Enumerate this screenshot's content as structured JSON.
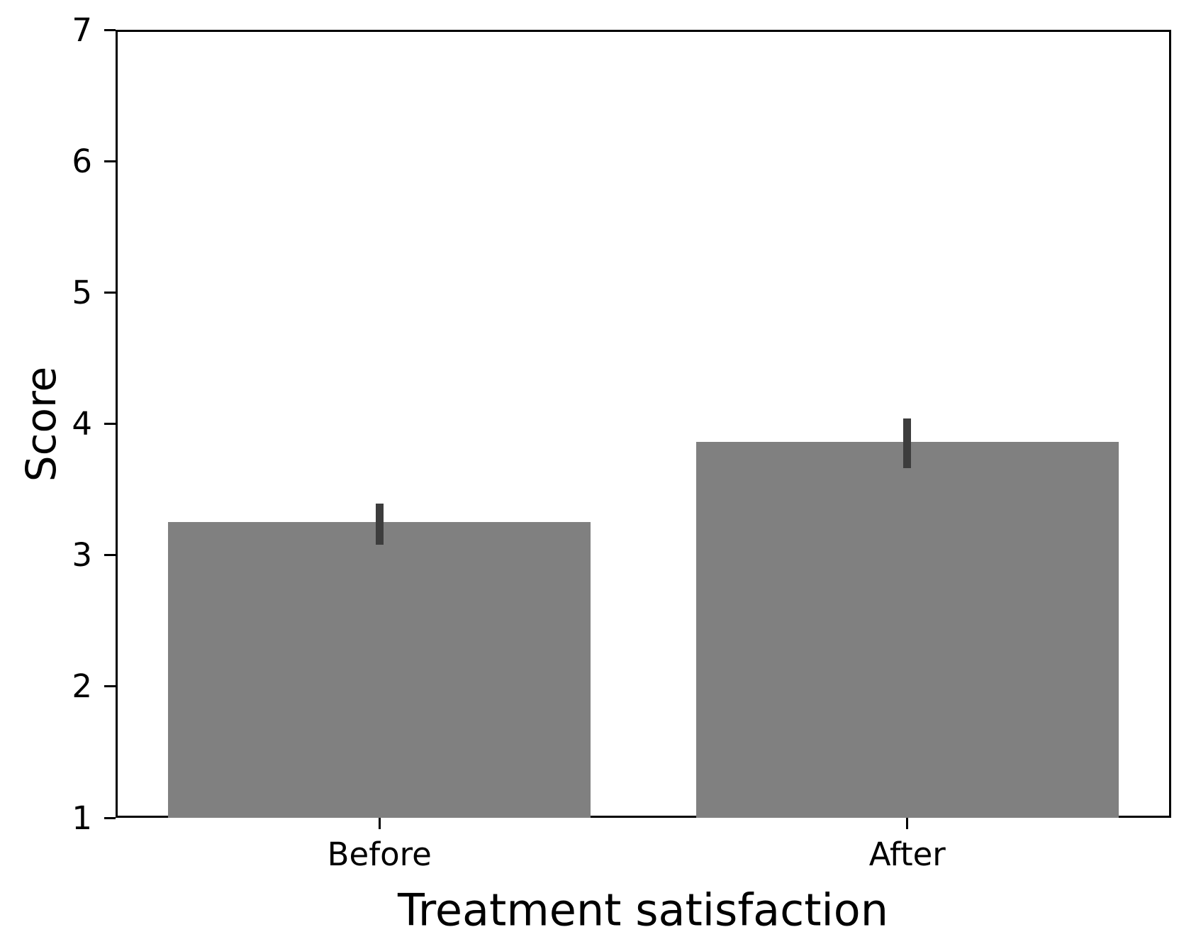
{
  "chart_data": {
    "type": "bar",
    "title": "",
    "xlabel": "Treatment satisfaction",
    "ylabel": "Score",
    "categories": [
      "Before",
      "After"
    ],
    "values": [
      3.25,
      3.86
    ],
    "error_bars": [
      {
        "low": 3.08,
        "high": 3.39
      },
      {
        "low": 3.66,
        "high": 4.04
      }
    ],
    "ylim": [
      1,
      7
    ],
    "yticks": [
      1,
      2,
      3,
      4,
      5,
      6,
      7
    ],
    "grid": false,
    "legend": "none",
    "bar_width_fraction": 0.8,
    "bar_color": "#808080",
    "error_bar_color": "#3d3d3d",
    "spine_color": "#000000",
    "text_color": "#000000",
    "background_color": "#ffffff"
  }
}
